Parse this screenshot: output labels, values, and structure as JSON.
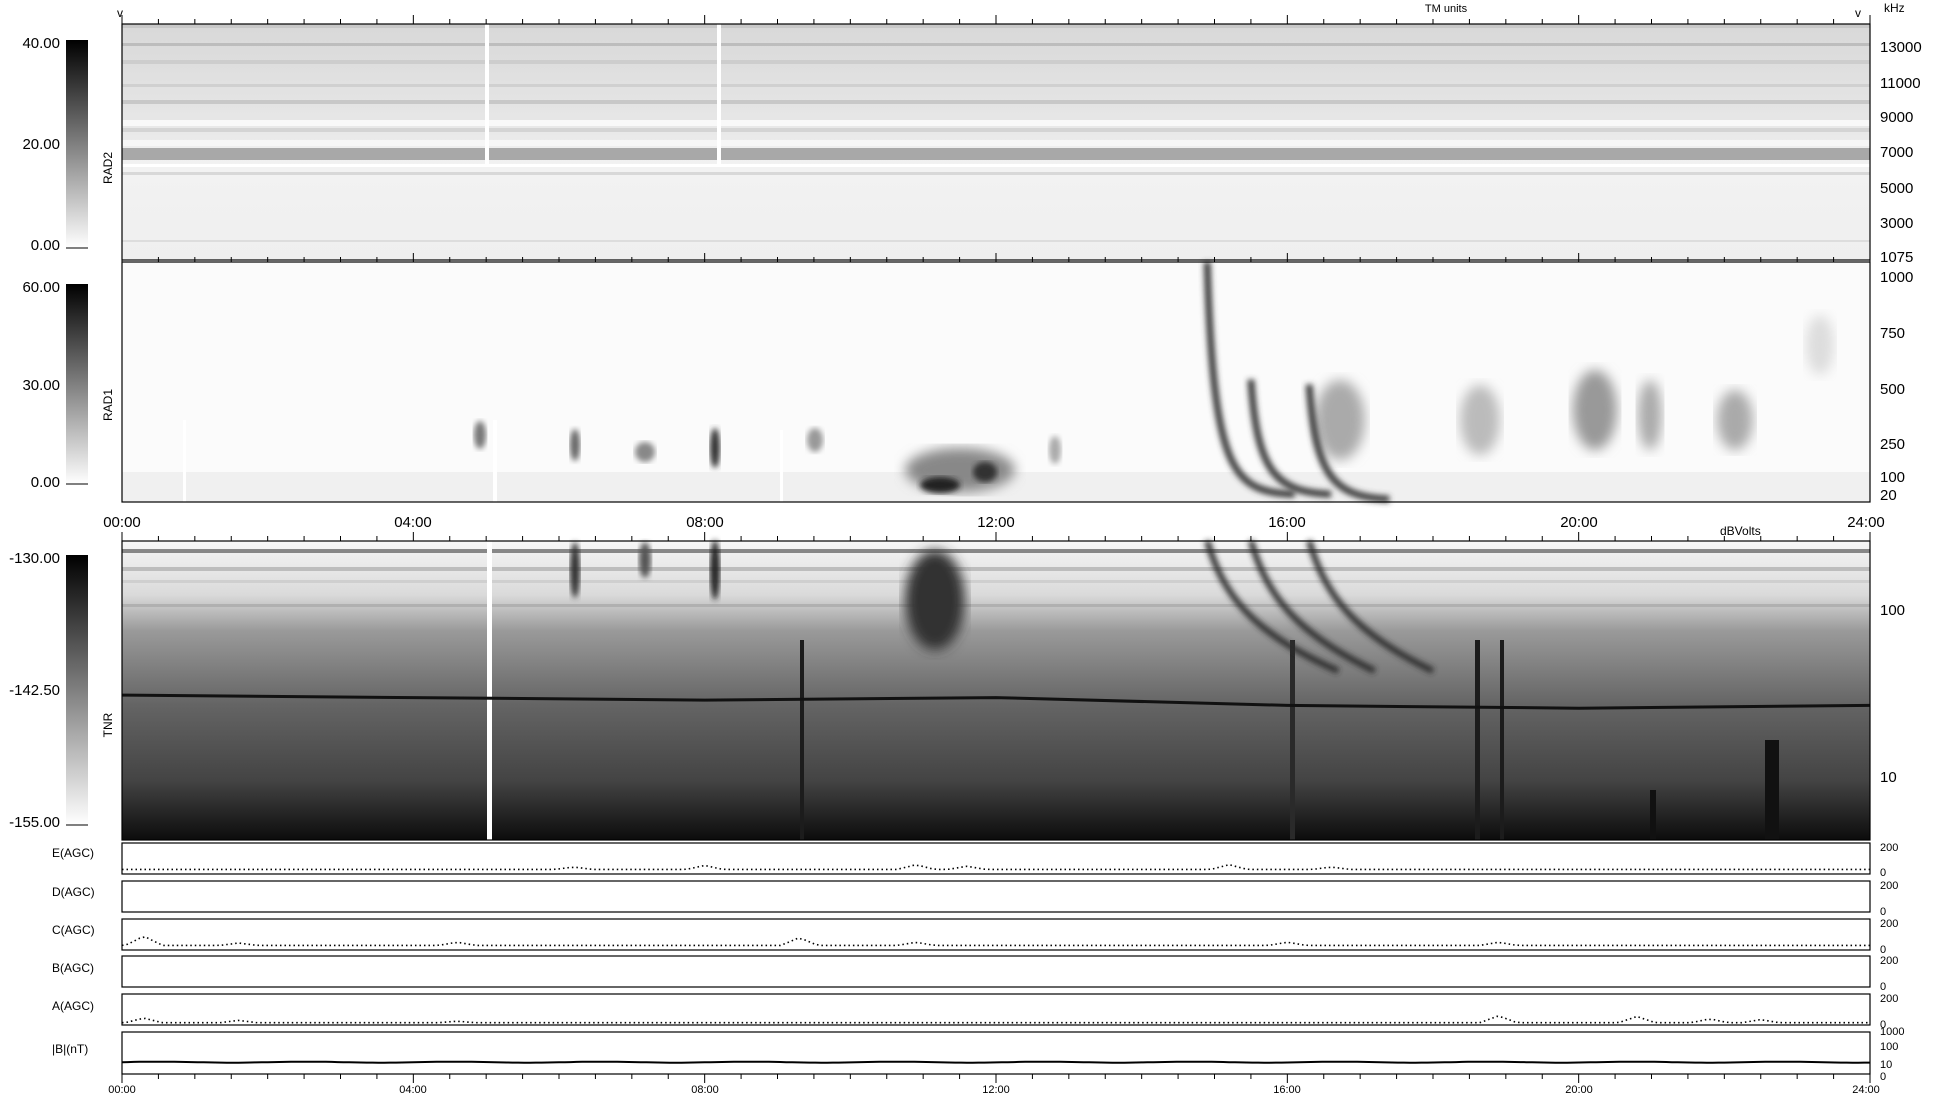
{
  "chart_data": {
    "type": "heatmap",
    "time_axis": {
      "range": [
        "00:00",
        "24:00"
      ],
      "ticks": [
        "00:00",
        "04:00",
        "08:00",
        "12:00",
        "16:00",
        "20:00",
        "24:00"
      ]
    },
    "heading_fragment": "TM units",
    "corner_marks": {
      "left": "v",
      "right": "v"
    },
    "panels": [
      {
        "name": "RAD2",
        "freq_unit": "kHz",
        "freq_range": [
          1075,
          14500
        ],
        "freq_ticks": [
          "13000",
          "11000",
          "9000",
          "7000",
          "5000",
          "3000",
          "1075"
        ],
        "colorbar_ticks": [
          "40.00",
          "20.00",
          "0.00"
        ],
        "colorbar_range": [
          0,
          40
        ]
      },
      {
        "name": "RAD1",
        "freq_range": [
          20,
          1000
        ],
        "freq_ticks": [
          "1000",
          "750",
          "500",
          "250",
          "100",
          "20"
        ],
        "colorbar_ticks": [
          "60.00",
          "30.00",
          "0.00"
        ],
        "colorbar_range": [
          0,
          60
        ],
        "bursts": [
          {
            "start_hour": 14.9,
            "end_hour": 16.1,
            "freq_start_khz": 1000,
            "freq_end_khz": 60
          },
          {
            "start_hour": 15.5,
            "end_hour": 16.6,
            "freq_start_khz": 520,
            "freq_end_khz": 60
          },
          {
            "start_hour": 16.3,
            "end_hour": 17.4,
            "freq_start_khz": 500,
            "freq_end_khz": 40
          }
        ]
      },
      {
        "name": "TNR",
        "colorbar_unit": "dBVolts",
        "freq_scale": "log",
        "freq_range": [
          4,
          256
        ],
        "freq_ticks": [
          "100",
          "10"
        ],
        "colorbar_ticks": [
          "-130.00",
          "-142.50",
          "-155.00"
        ],
        "colorbar_range": [
          -155,
          -130
        ],
        "plasma_line_khz": [
          {
            "hour": 0,
            "khz": 30
          },
          {
            "hour": 4,
            "khz": 29
          },
          {
            "hour": 8,
            "khz": 28
          },
          {
            "hour": 12,
            "khz": 29
          },
          {
            "hour": 16,
            "khz": 26
          },
          {
            "hour": 20,
            "khz": 25
          },
          {
            "hour": 24,
            "khz": 26
          }
        ]
      }
    ],
    "line_panels": [
      {
        "label": "E(AGC)",
        "ticks": [
          "200",
          "0"
        ],
        "ylim": [
          0,
          200
        ],
        "baseline": 30,
        "bumps": [
          {
            "hour": 6.2,
            "v": 45
          },
          {
            "hour": 8.0,
            "v": 55
          },
          {
            "hour": 10.9,
            "v": 60
          },
          {
            "hour": 11.6,
            "v": 50
          },
          {
            "hour": 15.2,
            "v": 60
          },
          {
            "hour": 16.6,
            "v": 45
          }
        ]
      },
      {
        "label": "D(AGC)",
        "ticks": [
          "200",
          "0"
        ],
        "ylim": [
          0,
          200
        ],
        "baseline": null,
        "bumps": []
      },
      {
        "label": "C(AGC)",
        "ticks": [
          "200",
          "0"
        ],
        "ylim": [
          0,
          200
        ],
        "baseline": 30,
        "bumps": [
          {
            "hour": 0.3,
            "v": 90
          },
          {
            "hour": 1.6,
            "v": 45
          },
          {
            "hour": 4.6,
            "v": 50
          },
          {
            "hour": 9.3,
            "v": 80
          },
          {
            "hour": 10.9,
            "v": 50
          },
          {
            "hour": 16.0,
            "v": 50
          },
          {
            "hour": 18.9,
            "v": 50
          }
        ]
      },
      {
        "label": "B(AGC)",
        "ticks": [
          "200",
          "0"
        ],
        "ylim": [
          0,
          200
        ],
        "baseline": null,
        "bumps": []
      },
      {
        "label": "A(AGC)",
        "ticks": [
          "200",
          "0"
        ],
        "ylim": [
          0,
          200
        ],
        "baseline": 15,
        "bumps": [
          {
            "hour": 0.3,
            "v": 45
          },
          {
            "hour": 1.6,
            "v": 30
          },
          {
            "hour": 4.6,
            "v": 25
          },
          {
            "hour": 18.9,
            "v": 60
          },
          {
            "hour": 20.8,
            "v": 55
          },
          {
            "hour": 21.8,
            "v": 40
          },
          {
            "hour": 22.5,
            "v": 35
          }
        ]
      },
      {
        "label": "|B|(nT)",
        "ticks": [
          "1000",
          "100",
          "10",
          "0"
        ],
        "scale": "log",
        "ylim": [
          1,
          1000
        ],
        "baseline": 7
      }
    ]
  }
}
